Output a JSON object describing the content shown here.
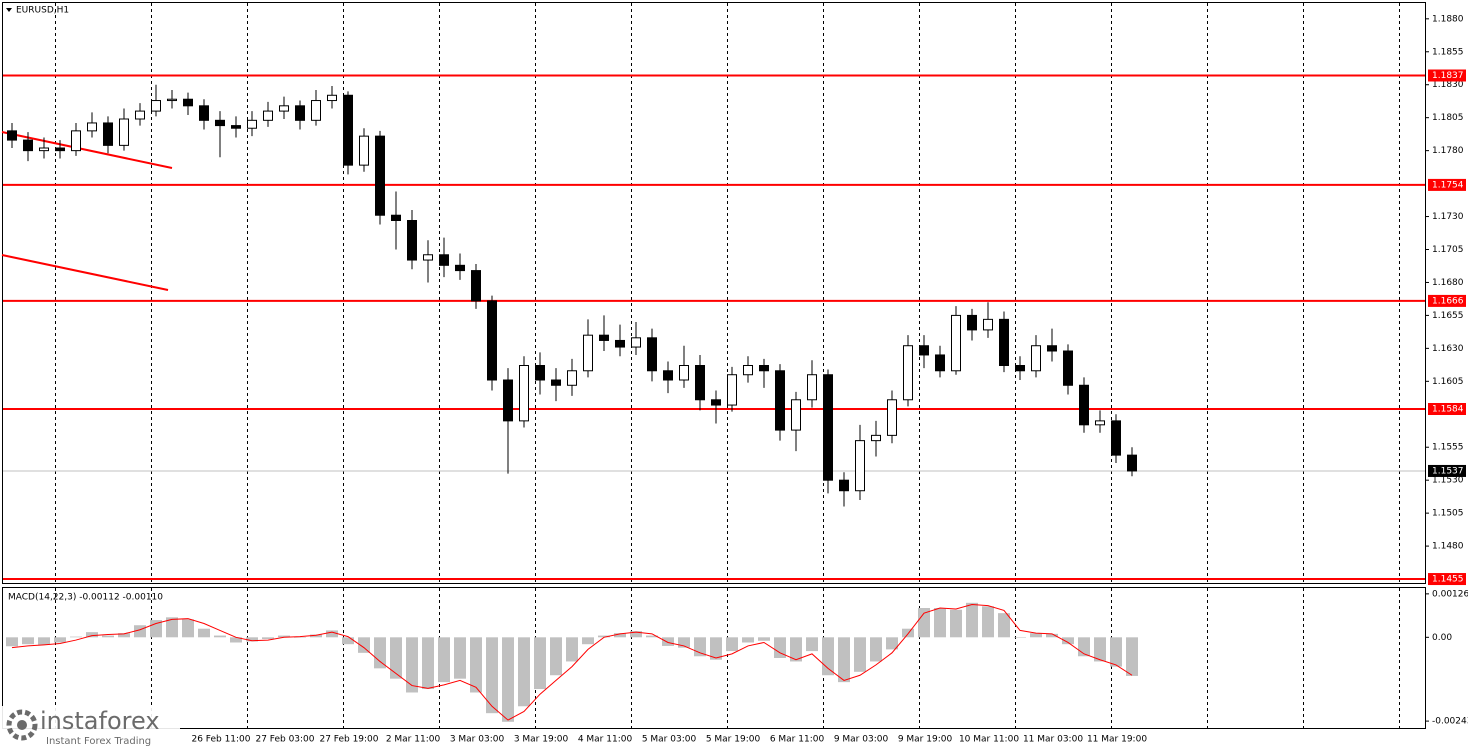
{
  "chart_data": [
    {
      "type": "candlestick",
      "title": "EURUSD,H1",
      "open": [
        1.1795,
        1.1788,
        1.178,
        1.1782,
        1.178,
        1.1795,
        1.1801,
        1.1784,
        1.1804,
        1.181,
        1.1818,
        1.1819,
        1.1814,
        1.1803,
        1.1799,
        1.1797,
        1.1803,
        1.181,
        1.1814,
        1.1803,
        1.1818,
        1.1822,
        1.1769,
        1.1791,
        1.1731,
        1.1727,
        1.1697,
        1.1701,
        1.1693,
        1.1689,
        1.1666,
        1.1606,
        1.1575,
        1.1617,
        1.1606,
        1.1602,
        1.1613,
        1.164,
        1.1636,
        1.1631,
        1.1638,
        1.1613,
        1.1606,
        1.1617,
        1.1591,
        1.1587,
        1.161,
        1.1617,
        1.1613,
        1.1568,
        1.1591,
        1.161,
        1.153,
        1.1522,
        1.156,
        1.1564,
        1.1591,
        1.1632,
        1.1625,
        1.1613,
        1.1655,
        1.1644,
        1.1652,
        1.1617,
        1.1613,
        1.1632,
        1.1628,
        1.1602,
        1.1572,
        1.1575,
        1.1549
      ],
      "high": [
        1.1801,
        1.1794,
        1.179,
        1.1788,
        1.1801,
        1.1809,
        1.1806,
        1.1812,
        1.1816,
        1.183,
        1.1826,
        1.1824,
        1.1819,
        1.181,
        1.1806,
        1.181,
        1.1817,
        1.1821,
        1.1818,
        1.1826,
        1.1829,
        1.1825,
        1.1797,
        1.1795,
        1.1749,
        1.1735,
        1.1712,
        1.1714,
        1.1702,
        1.1694,
        1.167,
        1.1615,
        1.1624,
        1.1627,
        1.1615,
        1.1622,
        1.1652,
        1.1655,
        1.1648,
        1.165,
        1.1645,
        1.162,
        1.1632,
        1.1625,
        1.1598,
        1.1616,
        1.1624,
        1.1622,
        1.1618,
        1.1597,
        1.1621,
        1.1614,
        1.1536,
        1.1572,
        1.1575,
        1.1598,
        1.164,
        1.164,
        1.1632,
        1.1662,
        1.166,
        1.1665,
        1.1658,
        1.1624,
        1.164,
        1.1645,
        1.1633,
        1.1608,
        1.1583,
        1.158,
        1.1555
      ],
      "low": [
        1.1782,
        1.1772,
        1.1774,
        1.1774,
        1.1776,
        1.179,
        1.1778,
        1.178,
        1.1799,
        1.1806,
        1.1812,
        1.1807,
        1.1796,
        1.1775,
        1.179,
        1.1791,
        1.1798,
        1.1804,
        1.1796,
        1.1799,
        1.1812,
        1.1762,
        1.1764,
        1.1724,
        1.1705,
        1.169,
        1.168,
        1.1684,
        1.1682,
        1.166,
        1.1598,
        1.1535,
        1.157,
        1.1595,
        1.159,
        1.1594,
        1.1608,
        1.1628,
        1.1624,
        1.1625,
        1.1605,
        1.1596,
        1.16,
        1.1583,
        1.1573,
        1.1582,
        1.1604,
        1.16,
        1.156,
        1.1552,
        1.1585,
        1.152,
        1.151,
        1.1515,
        1.1548,
        1.1558,
        1.1586,
        1.1615,
        1.1608,
        1.161,
        1.1636,
        1.1638,
        1.1612,
        1.1606,
        1.1608,
        1.162,
        1.1595,
        1.1566,
        1.1566,
        1.1543,
        1.1533
      ],
      "close": [
        1.1788,
        1.178,
        1.1782,
        1.178,
        1.1795,
        1.1801,
        1.1784,
        1.1804,
        1.181,
        1.1818,
        1.1819,
        1.1814,
        1.1803,
        1.1799,
        1.1797,
        1.1803,
        1.181,
        1.1814,
        1.1803,
        1.1818,
        1.1822,
        1.1769,
        1.1791,
        1.1731,
        1.1727,
        1.1697,
        1.1701,
        1.1693,
        1.1689,
        1.1666,
        1.1606,
        1.1575,
        1.1617,
        1.1606,
        1.1602,
        1.1613,
        1.164,
        1.1636,
        1.1631,
        1.1638,
        1.1613,
        1.1606,
        1.1617,
        1.1591,
        1.1587,
        1.161,
        1.1617,
        1.1613,
        1.1568,
        1.1591,
        1.161,
        1.153,
        1.1522,
        1.156,
        1.1564,
        1.1591,
        1.1632,
        1.1625,
        1.1613,
        1.1655,
        1.1644,
        1.1652,
        1.1617,
        1.1613,
        1.1632,
        1.1628,
        1.1602,
        1.1572,
        1.1575,
        1.1549,
        1.1537
      ],
      "up_color": "#ffffff",
      "down_color": "#000000",
      "ylim": [
        1.1452,
        1.1892
      ],
      "yticks": [
        {
          "value": 1.188,
          "label": "1.1880"
        },
        1.1855,
        {
          "value": 1.183,
          "label": "1.1830"
        },
        1.1805,
        {
          "value": 1.178,
          "label": "1.1780"
        },
        {
          "value": 1.173,
          "label": "1.1730"
        },
        1.1705,
        {
          "value": 1.168,
          "label": "1.1680"
        },
        1.1655,
        {
          "value": 1.163,
          "label": "1.1630"
        },
        1.1605,
        1.1555,
        {
          "value": 1.153,
          "label": "1.1530"
        },
        1.1505,
        {
          "value": 1.148,
          "label": "1.1480"
        }
      ],
      "levels": [
        1.1837,
        1.1754,
        1.1666,
        1.1584,
        1.1455
      ],
      "level_color": "#ff0000",
      "current_price": 1.1537,
      "x_labels": [
        "26 Feb 11:00",
        "27 Feb 03:00",
        "27 Feb 19:00",
        "2 Mar 11:00",
        "3 Mar 03:00",
        "3 Mar 19:00",
        "4 Mar 11:00",
        "5 Mar 03:00",
        "5 Mar 19:00",
        "6 Mar 11:00",
        "9 Mar 03:00",
        "9 Mar 19:00",
        "10 Mar 11:00",
        "11 Mar 03:00",
        "11 Mar 19:00"
      ],
      "logo": "instaforex",
      "logo_tagline": "Instant Forex Trading"
    },
    {
      "type": "macd",
      "title": "MACD(14,22,3) -0.00112 -0.00110",
      "histogram": [
        -0.00026,
        -0.0002,
        -0.00022,
        -0.00015,
        2e-05,
        0.00015,
        5e-05,
        0.00012,
        0.00035,
        0.0005,
        0.00058,
        0.00052,
        0.00025,
        5e-05,
        -0.00015,
        -0.00012,
        -5e-05,
        5e-05,
        0,
        8e-05,
        0.0002,
        -0.0002,
        -0.00045,
        -0.0009,
        -0.0012,
        -0.0016,
        -0.0015,
        -0.0013,
        -0.0012,
        -0.0016,
        -0.0022,
        -0.00245,
        -0.002,
        -0.0015,
        -0.0011,
        -0.0007,
        -0.0002,
        5e-05,
        0.00012,
        0.00018,
        5e-05,
        -0.00025,
        -0.0003,
        -0.00055,
        -0.00065,
        -0.0004,
        -0.00015,
        -0.0001,
        -0.0006,
        -0.0007,
        -0.0004,
        -0.0011,
        -0.0013,
        -0.001,
        -0.0007,
        -0.00035,
        0.00025,
        0.00085,
        0.00085,
        0.0008,
        0.001,
        0.0009,
        0.0007,
        0,
        0.00012,
        0.0001,
        -0.0002,
        -0.00055,
        -0.0007,
        -0.00085,
        -0.00112
      ],
      "signal": [
        -0.0003,
        -0.00025,
        -0.00022,
        -0.00018,
        -8e-05,
        5e-05,
        8e-05,
        0.0001,
        0.00022,
        0.0004,
        0.00052,
        0.00054,
        0.0004,
        0.0002,
        0,
        -0.0001,
        -8e-05,
        0,
        2e-05,
        6e-05,
        0.00015,
        2e-05,
        -0.0003,
        -0.0007,
        -0.00105,
        -0.0014,
        -0.00148,
        -0.00138,
        -0.00125,
        -0.00145,
        -0.002,
        -0.0024,
        -0.00215,
        -0.00165,
        -0.00125,
        -0.00085,
        -0.00035,
        0,
        0.0001,
        0.00015,
        0.0001,
        -0.00015,
        -0.00025,
        -0.00045,
        -0.0006,
        -0.00048,
        -0.00025,
        -0.00015,
        -0.00045,
        -0.00065,
        -0.00048,
        -0.0009,
        -0.00125,
        -0.0011,
        -0.0008,
        -0.00045,
        0.0001,
        0.0007,
        0.00085,
        0.00082,
        0.00095,
        0.00092,
        0.00078,
        0.0002,
        0.00012,
        0.0001,
        -0.00015,
        -0.00048,
        -0.00065,
        -0.0008,
        -0.0011
      ],
      "histogram_color": "#c0c0c0",
      "signal_color": "#ff0000",
      "ylim": [
        -0.00263,
        0.00143
      ],
      "yticks": [
        0.00126,
        {
          "value": 0,
          "label": "0.00"
        },
        -0.00243
      ]
    }
  ]
}
